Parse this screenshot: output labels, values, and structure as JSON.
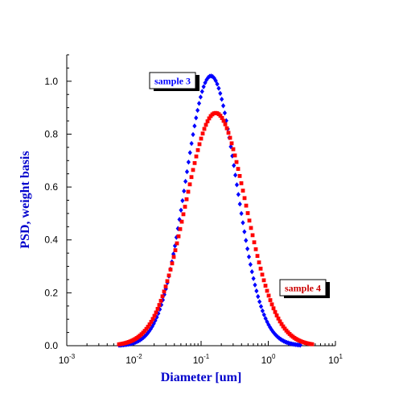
{
  "chart_data": {
    "type": "scatter",
    "xlabel": "Diameter [um]",
    "ylabel": "PSD, weight basis",
    "xscale": "log",
    "xlim": [
      0.001,
      10
    ],
    "ylim": [
      0,
      1.1
    ],
    "x_ticks": [
      {
        "base": "10",
        "exp": "-3"
      },
      {
        "base": "10",
        "exp": "-2"
      },
      {
        "base": "10",
        "exp": "-1"
      },
      {
        "base": "10",
        "exp": "0"
      },
      {
        "base": "10",
        "exp": "1"
      }
    ],
    "y_ticks": [
      "0.0",
      "0.2",
      "0.4",
      "0.6",
      "0.8",
      "1.0"
    ],
    "grid": false,
    "series": [
      {
        "name": "sample 3",
        "color": "#0000ff",
        "marker": "diamond",
        "peak": 1.02,
        "median_um": 0.14,
        "log10_sigma": 0.38,
        "range_um": [
          0.006,
          3.0
        ]
      },
      {
        "name": "sample 4",
        "color": "#ff0000",
        "marker": "square",
        "peak": 0.88,
        "median_um": 0.165,
        "log10_sigma": 0.45,
        "range_um": [
          0.006,
          4.5
        ]
      }
    ],
    "annotations": [
      {
        "text": "sample 3",
        "series": 0
      },
      {
        "text": "sample 4",
        "series": 1
      }
    ]
  }
}
